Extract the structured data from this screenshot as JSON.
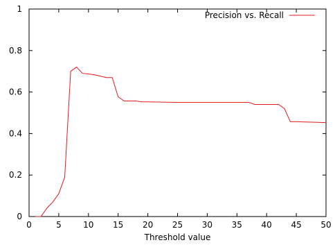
{
  "chart_data": {
    "type": "line",
    "title": "",
    "xlabel": "Threshold value",
    "ylabel": "",
    "xlim": [
      0,
      50
    ],
    "ylim": [
      0,
      1
    ],
    "xticks": [
      0,
      5,
      10,
      15,
      20,
      25,
      30,
      35,
      40,
      45,
      50
    ],
    "yticks": [
      0,
      0.2,
      0.4,
      0.6,
      0.8,
      1
    ],
    "ytick_labels": [
      "0",
      "0.2",
      "0.4",
      "0.6",
      "0.8",
      "1"
    ],
    "grid": false,
    "legend": "top-right",
    "series": [
      {
        "name": "Precision vs. Recall",
        "color": "#e41a1c",
        "x": [
          1,
          2,
          3,
          4,
          5,
          6,
          7,
          8,
          9,
          10,
          11,
          12,
          13,
          14,
          15,
          16,
          17,
          18,
          19,
          20,
          25,
          30,
          35,
          37,
          38,
          39,
          40,
          41,
          42,
          43,
          44,
          45,
          50
        ],
        "y": [
          0,
          0,
          0.04,
          0.07,
          0.11,
          0.19,
          0.7,
          0.72,
          0.69,
          0.687,
          0.683,
          0.677,
          0.67,
          0.67,
          0.577,
          0.557,
          0.557,
          0.557,
          0.553,
          0.553,
          0.55,
          0.55,
          0.55,
          0.55,
          0.54,
          0.54,
          0.54,
          0.54,
          0.54,
          0.52,
          0.457,
          0.457,
          0.453
        ]
      }
    ]
  }
}
